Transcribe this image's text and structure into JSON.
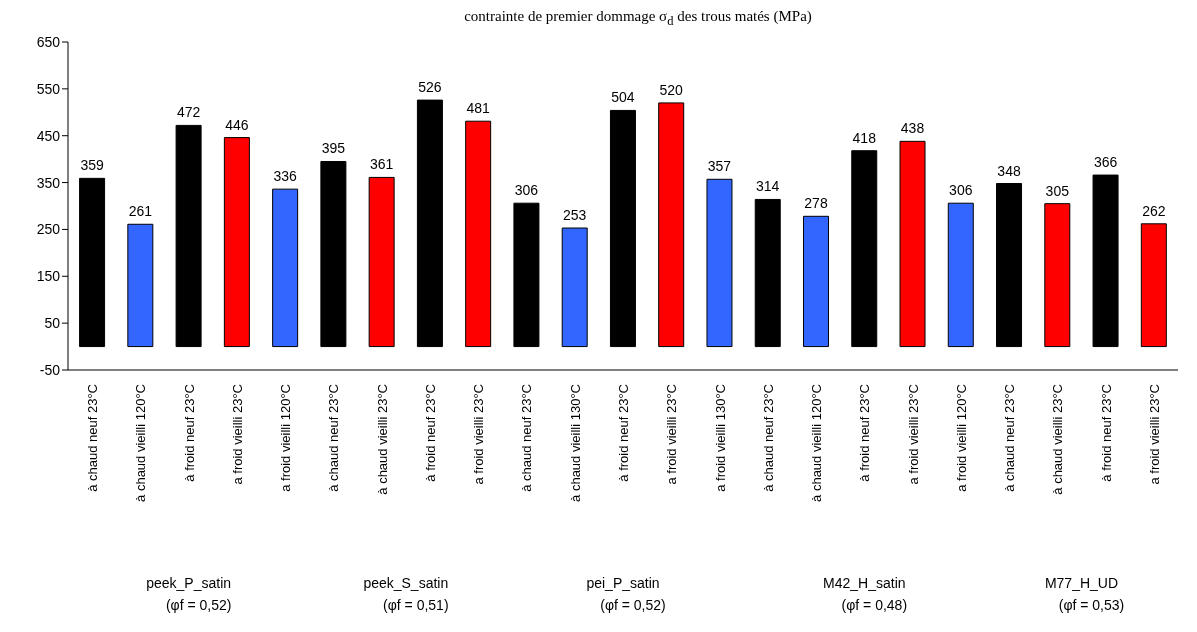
{
  "chart_data": {
    "type": "bar",
    "title": "contrainte de premier dommage σ$_{d}$ des trous matés (MPa)",
    "categories": [
      "à chaud neuf 23°C",
      "à chaud vieilli 120°C",
      "à froid neuf 23°C",
      "a froid vieilli 23°C",
      "a froid vieilli 120°C",
      "à chaud neuf 23°C",
      "à chaud vieilli 23°C",
      "à froid neuf 23°C",
      "a froid vieilli 23°C",
      "à chaud neuf 23°C",
      "à chaud vieilli 130°C",
      "à froid neuf 23°C",
      "a froid vieilli 23°C",
      "a froid vieilli 130°C",
      "à chaud neuf 23°C",
      "à chaud vieilli 120°C",
      "à froid neuf 23°C",
      "a froid vieilli 23°C",
      "a froid vieilli 120°C",
      "à chaud neuf 23°C",
      "à chaud vieilli 23°C",
      "à froid neuf 23°C",
      "a froid vieilli 23°C"
    ],
    "values": [
      359,
      261,
      472,
      446,
      336,
      395,
      361,
      526,
      481,
      306,
      253,
      504,
      520,
      357,
      314,
      278,
      418,
      438,
      306,
      348,
      305,
      366,
      262
    ],
    "colors": [
      "#000000",
      "#3366ff",
      "#000000",
      "#ff0000",
      "#3366ff",
      "#000000",
      "#ff0000",
      "#000000",
      "#ff0000",
      "#000000",
      "#3366ff",
      "#000000",
      "#ff0000",
      "#3366ff",
      "#000000",
      "#3366ff",
      "#000000",
      "#ff0000",
      "#3366ff",
      "#000000",
      "#ff0000",
      "#000000",
      "#ff0000"
    ],
    "ylim": [
      -50,
      650
    ],
    "yticks": [
      -50,
      50,
      150,
      250,
      350,
      450,
      550,
      650
    ],
    "data_labels": true,
    "grid": false,
    "legend": false,
    "annotations": [
      "peek_P_satin\n(φf = 0,52)",
      "peek_S_satin\n(φf = 0,51)",
      "pei_P_satin\n(φf = 0,52)",
      "M42_H_satin\n(φf = 0,48)",
      "M77_H_UD\n(φf = 0,53)"
    ]
  }
}
